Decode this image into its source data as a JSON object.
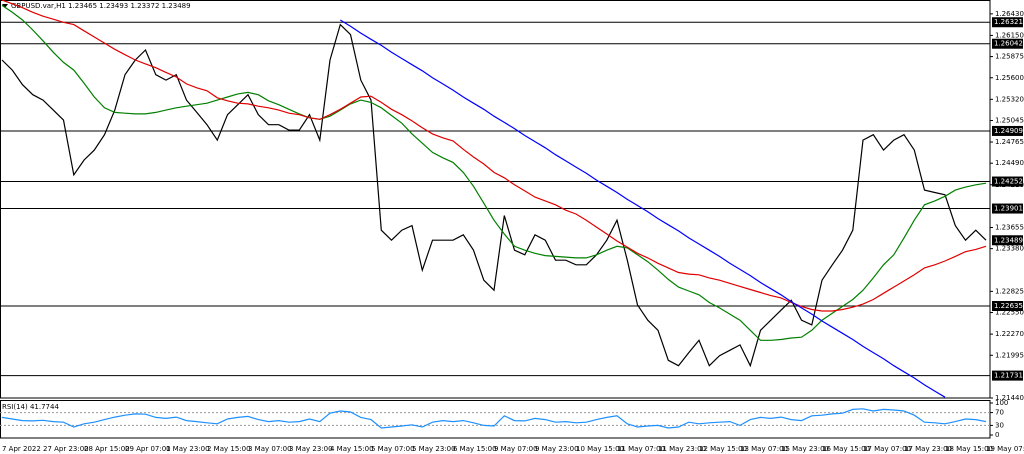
{
  "chart_data": [
    {
      "type": "line",
      "title": "GBPUSD.var,H1  1.23465 1.23493 1.23372 1.23489",
      "categories": [
        "7 Apr 2022",
        null,
        null,
        null,
        "27 Apr 23:00",
        null,
        null,
        null,
        "28 Apr 15:00",
        null,
        null,
        null,
        "29 Apr 07:00",
        null,
        null,
        null,
        "1 May 23:00",
        null,
        null,
        null,
        "2 May 15:00",
        null,
        null,
        null,
        "3 May 07:00",
        null,
        null,
        null,
        "3 May 23:00",
        null,
        null,
        null,
        "4 May 15:00",
        null,
        null,
        null,
        "5 May 07:00",
        null,
        null,
        null,
        "5 May 23:00",
        null,
        null,
        null,
        "6 May 15:00",
        null,
        null,
        null,
        "9 May 07:00",
        null,
        null,
        null,
        "9 May 23:00",
        null,
        null,
        null,
        "10 May 15:00",
        null,
        null,
        null,
        "11 May 07:00",
        null,
        null,
        null,
        "11 May 23:00",
        null,
        null,
        null,
        "12 May 15:00",
        null,
        null,
        null,
        "13 May 07:00",
        null,
        null,
        null,
        "15 May 23:00",
        null,
        null,
        null,
        "16 May 15:00",
        null,
        null,
        null,
        "17 May 07:00",
        null,
        null,
        null,
        "17 May 23:00",
        null,
        null,
        null,
        "18 May 15:00",
        null,
        null,
        null,
        "19 May 07:00"
      ],
      "series": [
        {
          "color": "#000000",
          "values": [
            1.2583,
            1.257,
            1.2551,
            1.2538,
            1.2531,
            1.2518,
            1.2505,
            1.2434,
            1.2453,
            1.2466,
            1.2486,
            1.2518,
            1.2564,
            1.2583,
            1.2596,
            1.2564,
            1.2557,
            1.2564,
            1.2531,
            1.2515,
            1.2499,
            1.2479,
            1.2512,
            1.2525,
            1.2538,
            1.2512,
            1.2499,
            1.2499,
            1.2492,
            1.2492,
            1.2512,
            1.2479,
            1.2583,
            1.2629,
            1.2616,
            1.2557,
            1.2531,
            1.2362,
            1.2349,
            1.2362,
            1.2368,
            1.231,
            1.2349,
            1.2349,
            1.2349,
            1.2356,
            1.2336,
            1.2297,
            1.2284,
            1.2381,
            1.2336,
            1.233,
            1.2356,
            1.2349,
            1.2323,
            1.2323,
            1.2317,
            1.2317,
            1.233,
            1.2349,
            1.2375,
            1.2323,
            1.2265,
            1.2245,
            1.2232,
            1.2193,
            1.2186,
            1.2203,
            1.2219,
            1.2186,
            1.2199,
            1.2206,
            1.2213,
            1.2186,
            1.2232,
            1.2245,
            1.2258,
            1.2271,
            1.2245,
            1.2239,
            1.2297,
            1.2317,
            1.2336,
            1.2362,
            1.2479,
            1.2486,
            1.2466,
            1.2479,
            1.2486,
            1.2466,
            1.2414,
            1.2411,
            1.2408,
            1.2368,
            1.2349,
            1.2362,
            1.2349
          ]
        },
        {
          "color": "#008000",
          "values": [
            1.2654,
            1.2645,
            1.2635,
            1.2622,
            1.2608,
            1.2593,
            1.258,
            1.257,
            1.2553,
            1.2535,
            1.2521,
            1.2515,
            1.2514,
            1.2513,
            1.2513,
            1.2515,
            1.2518,
            1.2521,
            1.2523,
            1.2525,
            1.2527,
            1.2531,
            1.2535,
            1.2539,
            1.2541,
            1.2538,
            1.253,
            1.2525,
            1.2519,
            1.2513,
            1.2508,
            1.2506,
            1.251,
            1.2518,
            1.2526,
            1.2531,
            1.2528,
            1.2521,
            1.2511,
            1.2501,
            1.2487,
            1.2475,
            1.2463,
            1.2456,
            1.245,
            1.2437,
            1.2419,
            1.2397,
            1.2375,
            1.2357,
            1.2341,
            1.2336,
            1.2332,
            1.2329,
            1.2328,
            1.2327,
            1.2326,
            1.2326,
            1.233,
            1.2336,
            1.2341,
            1.2339,
            1.233,
            1.2321,
            1.231,
            1.2298,
            1.2288,
            1.2283,
            1.2278,
            1.2268,
            1.2261,
            1.2253,
            1.2245,
            1.2232,
            1.2219,
            1.2219,
            1.222,
            1.2222,
            1.2223,
            1.2232,
            1.2245,
            1.2254,
            1.2263,
            1.2272,
            1.2284,
            1.23,
            1.2317,
            1.233,
            1.2352,
            1.2375,
            1.2395,
            1.24,
            1.2406,
            1.2414,
            1.2418,
            1.2421,
            1.2423
          ]
        },
        {
          "color": "#e00000",
          "values": [
            1.2661,
            1.2656,
            1.2651,
            1.2645,
            1.264,
            1.2636,
            1.2632,
            1.2629,
            1.2621,
            1.2613,
            1.2605,
            1.2597,
            1.259,
            1.2583,
            1.2578,
            1.2573,
            1.2567,
            1.2561,
            1.2552,
            1.2547,
            1.2543,
            1.2534,
            1.253,
            1.2527,
            1.2526,
            1.2523,
            1.2521,
            1.2518,
            1.2514,
            1.2512,
            1.2508,
            1.2506,
            1.2512,
            1.2519,
            1.2527,
            1.2535,
            1.2536,
            1.2528,
            1.2519,
            1.2512,
            1.2504,
            1.2495,
            1.2487,
            1.2482,
            1.2478,
            1.2467,
            1.2457,
            1.2448,
            1.2437,
            1.243,
            1.2421,
            1.2413,
            1.2405,
            1.24,
            1.2395,
            1.2388,
            1.2383,
            1.2375,
            1.2366,
            1.2357,
            1.2348,
            1.234,
            1.2332,
            1.2326,
            1.2319,
            1.2313,
            1.2307,
            1.2305,
            1.2304,
            1.23,
            1.2297,
            1.2293,
            1.2289,
            1.2285,
            1.2281,
            1.2277,
            1.2274,
            1.2268,
            1.2263,
            1.2259,
            1.2257,
            1.2257,
            1.2259,
            1.2262,
            1.2266,
            1.2272,
            1.228,
            1.2288,
            1.2296,
            1.2304,
            1.2313,
            1.2317,
            1.2322,
            1.2328,
            1.2334,
            1.2337,
            1.2341
          ]
        },
        {
          "color": "#0000ff",
          "values": [
            null,
            null,
            null,
            null,
            null,
            null,
            null,
            null,
            null,
            null,
            null,
            null,
            null,
            null,
            null,
            null,
            null,
            null,
            null,
            null,
            null,
            null,
            null,
            null,
            null,
            null,
            null,
            null,
            null,
            null,
            null,
            null,
            null,
            1.2635,
            1.2627,
            1.2618,
            1.261,
            1.2602,
            1.2593,
            1.2585,
            1.2577,
            1.2569,
            1.256,
            1.2552,
            1.2544,
            1.2535,
            1.2527,
            1.2519,
            1.251,
            1.2502,
            1.2494,
            1.2485,
            1.2477,
            1.2469,
            1.246,
            1.2452,
            1.2444,
            1.2436,
            1.2427,
            1.2419,
            1.2411,
            1.2402,
            1.2394,
            1.2386,
            1.2377,
            1.2369,
            1.2361,
            1.2352,
            1.2344,
            1.2336,
            1.2328,
            1.2319,
            1.2311,
            1.2303,
            1.2294,
            1.2286,
            1.2278,
            1.2269,
            1.2261,
            1.2253,
            1.2244,
            1.2236,
            1.2228,
            1.222,
            1.2211,
            1.2203,
            1.2195,
            1.2186,
            1.2178,
            1.217,
            1.2161,
            1.2153,
            1.2145,
            null,
            null,
            null,
            null
          ]
        }
      ],
      "ylim": [
        1.2144,
        1.2661
      ],
      "yticks": [
        {
          "value": 1.2643,
          "label": "1.26430"
        },
        {
          "value": 1.2615,
          "label": "1.26150"
        },
        1.25875,
        {
          "value": 1.256,
          "label": "1.25600"
        },
        {
          "value": 1.2532,
          "label": "1.25320"
        },
        1.25045,
        1.24765,
        {
          "value": 1.2449,
          "label": "1.24490"
        },
        {
          "value": 1.2421,
          "label": "1.24210"
        },
        1.23655,
        {
          "value": 1.2338,
          "label": "1.23380"
        },
        1.22825,
        {
          "value": 1.2255,
          "label": "1.22550"
        },
        {
          "value": 1.2227,
          "label": "1.22270"
        },
        1.21995,
        {
          "value": 1.2144,
          "label": "1.21440"
        }
      ],
      "levels": [
        1.26321,
        1.26042,
        1.24909,
        1.24252,
        1.23901,
        1.22635,
        1.21731
      ],
      "last_price": 1.23489
    },
    {
      "type": "line",
      "title": "RSI(14) 41.7744",
      "series": [
        {
          "color": "#1e90ff",
          "values": [
            55,
            50,
            45,
            44,
            46,
            42,
            40,
            25,
            35,
            40,
            48,
            56,
            62,
            66,
            65,
            55,
            52,
            56,
            45,
            42,
            38,
            35,
            50,
            55,
            58,
            48,
            42,
            45,
            40,
            42,
            50,
            42,
            68,
            75,
            72,
            55,
            48,
            22,
            25,
            28,
            32,
            25,
            40,
            45,
            42,
            45,
            38,
            30,
            28,
            60,
            45,
            44,
            52,
            48,
            40,
            42,
            38,
            40,
            48,
            55,
            60,
            35,
            25,
            28,
            30,
            22,
            25,
            40,
            35,
            38,
            40,
            42,
            30,
            48,
            55,
            52,
            56,
            48,
            45,
            60,
            62,
            66,
            68,
            80,
            82,
            75,
            80,
            78,
            75,
            62,
            40,
            38,
            35,
            42,
            50,
            48,
            41.7744
          ]
        }
      ],
      "ylim": [
        0,
        100
      ],
      "yticks": [
        0,
        30,
        70,
        100
      ],
      "levels": [
        70,
        30
      ]
    }
  ]
}
